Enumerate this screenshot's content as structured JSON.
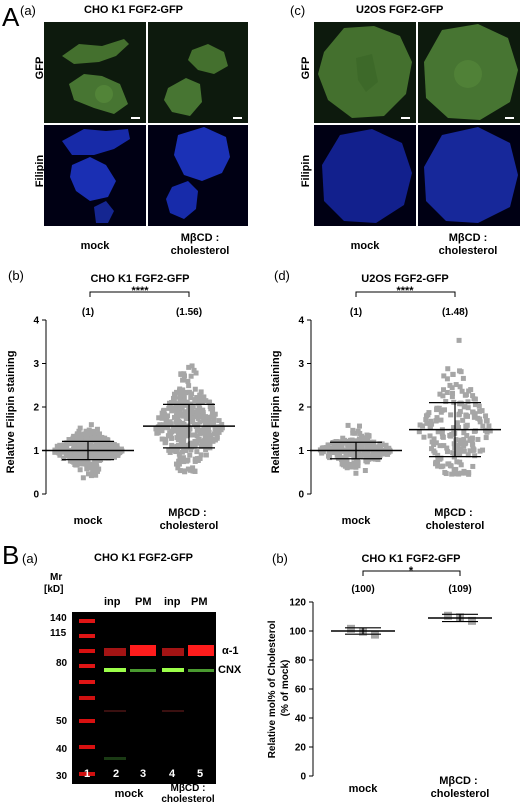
{
  "panelA": {
    "letter": "A",
    "a": {
      "label": "(a)",
      "title": "CHO K1 FGF2-GFP",
      "rows": [
        "GFP",
        "Filipin"
      ],
      "cols": [
        [
          "mock"
        ],
        [
          "MβCD :",
          "cholesterol"
        ]
      ]
    },
    "c": {
      "label": "(c)",
      "title": "U2OS FGF2-GFP",
      "rows": [
        "GFP",
        "Filipin"
      ],
      "cols": [
        [
          "mock"
        ],
        [
          "MβCD :",
          "cholesterol"
        ]
      ]
    },
    "b": {
      "label": "(b)",
      "title": "CHO K1 FGF2-GFP",
      "significance": "****",
      "annotations": [
        "(1)",
        "(1.56)"
      ],
      "ylabel": "Relative Filipin staining"
    },
    "d": {
      "label": "(d)",
      "title": "U2OS FGF2-GFP",
      "significance": "****",
      "annotations": [
        "(1)",
        "(1.48)"
      ],
      "ylabel": "Relative Filipin staining"
    }
  },
  "panelB": {
    "letter": "B",
    "a": {
      "label": "(a)",
      "title": "CHO K1 FGF2-GFP",
      "mr_label": "Mr",
      "kd_label": "[kD]",
      "markers": [
        "140",
        "115",
        "80",
        "50",
        "40",
        "30"
      ],
      "lane_headers": [
        "inp",
        "PM",
        "inp",
        "PM"
      ],
      "lane_numbers": [
        "1",
        "2",
        "3",
        "4",
        "5"
      ],
      "band_labels": [
        "α-1",
        "CNX"
      ],
      "groups": [
        [
          "mock"
        ],
        [
          "MβCD :",
          "cholesterol"
        ]
      ]
    },
    "b": {
      "label": "(b)",
      "title": "CHO K1 FGF2-GFP",
      "significance": "*",
      "annotations": [
        "(100)",
        "(109)"
      ],
      "ylabel_lines": [
        "Relative mol% of Cholesterol",
        "(% of mock)"
      ]
    }
  },
  "chart_data": [
    {
      "id": "Ab",
      "type": "scatter",
      "title": "CHO K1 FGF2-GFP",
      "ylabel": "Relative Filipin staining",
      "categories": [
        "mock",
        "MβCD : cholesterol"
      ],
      "ylim": [
        0,
        4
      ],
      "yticks": [
        0,
        1,
        2,
        3,
        4
      ],
      "groups": [
        {
          "name": "mock",
          "n": 320,
          "mean": 1.0,
          "sd": 0.21,
          "min": 0.35,
          "max": 1.75
        },
        {
          "name": "MβCD : cholesterol",
          "n": 360,
          "mean": 1.56,
          "sd": 0.5,
          "min": 0.5,
          "max": 3.5
        }
      ],
      "color": "#a6a6a6"
    },
    {
      "id": "Ad",
      "type": "scatter",
      "title": "U2OS FGF2-GFP",
      "ylabel": "Relative Filipin staining",
      "categories": [
        "mock",
        "MβCD : cholesterol"
      ],
      "ylim": [
        0,
        4
      ],
      "yticks": [
        0,
        1,
        2,
        3,
        4
      ],
      "groups": [
        {
          "name": "mock",
          "n": 240,
          "mean": 1.0,
          "sd": 0.19,
          "min": 0.45,
          "max": 1.58
        },
        {
          "name": "MβCD : cholesterol",
          "n": 190,
          "mean": 1.48,
          "sd": 0.62,
          "min": 0.45,
          "max": 3.55
        }
      ],
      "color": "#a6a6a6"
    },
    {
      "id": "Bb",
      "type": "scatter",
      "title": "CHO K1 FGF2-GFP",
      "ylabel": "Relative mol% of Cholesterol (% of mock)",
      "categories": [
        "mock",
        "MβCD : cholesterol"
      ],
      "ylim": [
        0,
        120
      ],
      "yticks": [
        0,
        20,
        40,
        60,
        80,
        100,
        120
      ],
      "groups": [
        {
          "name": "mock",
          "points": [
            101.5,
            99.5,
            97.5
          ],
          "mean": 100,
          "sd": 2.2
        },
        {
          "name": "MβCD : cholesterol",
          "points": [
            110.5,
            109.5,
            107
          ],
          "mean": 109,
          "sd": 2.5
        }
      ],
      "color": "#a6a6a6"
    }
  ]
}
